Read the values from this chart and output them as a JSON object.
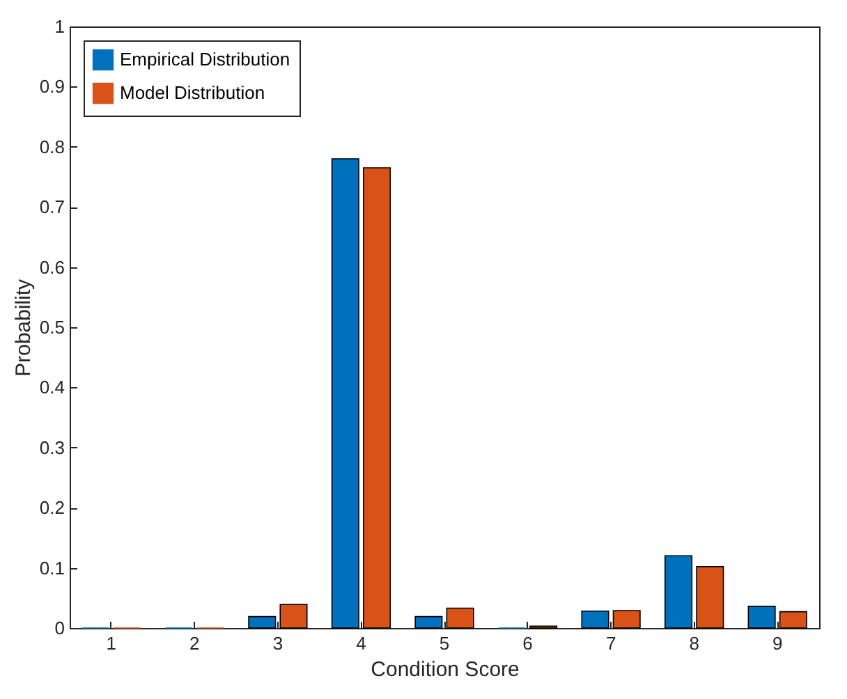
{
  "chart_data": {
    "type": "bar",
    "xlabel": "Condition Score",
    "ylabel": "Probability",
    "categories": [
      "1",
      "2",
      "3",
      "4",
      "5",
      "6",
      "7",
      "8",
      "9"
    ],
    "series": [
      {
        "name": "Empirical Distribution",
        "color": "#0072bd",
        "values": [
          0,
          0,
          0.019,
          0.78,
          0.019,
          0,
          0.028,
          0.12,
          0.036
        ]
      },
      {
        "name": "Model Distribution",
        "color": "#d95319",
        "values": [
          0,
          0,
          0.039,
          0.765,
          0.033,
          0.003,
          0.029,
          0.102,
          0.027
        ]
      }
    ],
    "ylim": [
      0,
      1
    ],
    "yticks": [
      0,
      0.1,
      0.2,
      0.3,
      0.4,
      0.5,
      0.6,
      0.7,
      0.8,
      0.9,
      1
    ],
    "grid": false,
    "legend": "top left"
  }
}
